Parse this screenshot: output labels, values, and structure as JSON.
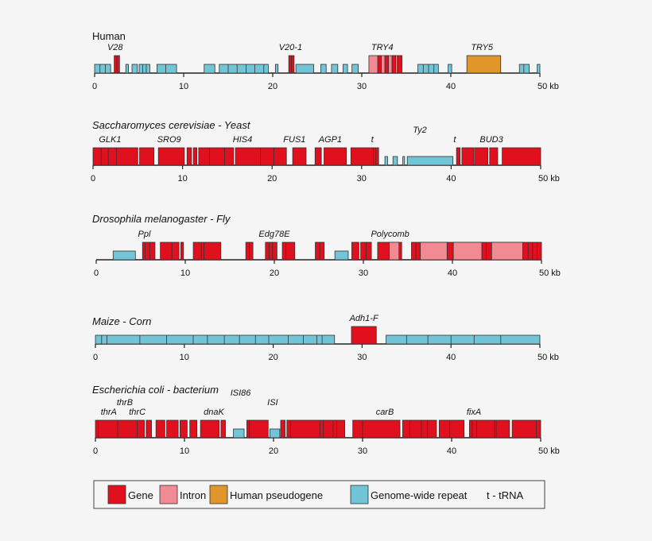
{
  "colors": {
    "gene": "#e0101e",
    "intron": "#f28a94",
    "pseudogene": "#e0962a",
    "repeat": "#72c5d6",
    "axis": "#222222",
    "box_stroke": "#333333"
  },
  "legend": [
    {
      "key": "gene",
      "label": "Gene",
      "type": "gene"
    },
    {
      "key": "intron",
      "label": "Intron",
      "type": "intron"
    },
    {
      "key": "pseudogene",
      "label": "Human pseudogene",
      "type": "pseudogene"
    },
    {
      "key": "repeat",
      "label": "Genome-wide repeat",
      "type": "repeat"
    },
    {
      "key": "trna",
      "label": "t - tRNA",
      "type": "text"
    }
  ],
  "genomes": [
    {
      "id": "human",
      "title": "Human",
      "italic": false,
      "ticks": [
        "0",
        "10",
        "20",
        "30",
        "40",
        "50 kb"
      ],
      "labels": [
        {
          "text": "V28",
          "kb": 2.3,
          "row": 0
        },
        {
          "text": "V20-1",
          "kb": 22.0,
          "row": 0
        },
        {
          "text": "TRY4",
          "kb": 32.3,
          "row": 0
        },
        {
          "text": "TRY5",
          "kb": 43.5,
          "row": 0
        }
      ],
      "features": [
        {
          "type": "repeat",
          "start": 0.0,
          "end": 1.8,
          "h": "s",
          "div": [
            0.6,
            1.2
          ]
        },
        {
          "type": "gene",
          "start": 2.2,
          "end": 2.8,
          "h": "t",
          "div": [
            2.5
          ]
        },
        {
          "type": "repeat",
          "start": 3.5,
          "end": 3.8,
          "h": "s"
        },
        {
          "type": "repeat",
          "start": 4.2,
          "end": 4.8,
          "h": "s"
        },
        {
          "type": "repeat",
          "start": 5.0,
          "end": 6.2,
          "h": "s",
          "div": [
            5.4,
            5.8
          ]
        },
        {
          "type": "repeat",
          "start": 7.0,
          "end": 9.2,
          "h": "s",
          "div": [
            8.0
          ]
        },
        {
          "type": "repeat",
          "start": 12.3,
          "end": 13.5,
          "h": "s"
        },
        {
          "type": "repeat",
          "start": 14.0,
          "end": 19.5,
          "h": "s",
          "div": [
            15.0,
            16.0,
            17.0,
            18.0,
            19.0
          ]
        },
        {
          "type": "repeat",
          "start": 20.3,
          "end": 20.6,
          "h": "s"
        },
        {
          "type": "gene",
          "start": 21.8,
          "end": 22.4,
          "h": "t",
          "div": [
            22.1
          ]
        },
        {
          "type": "repeat",
          "start": 22.6,
          "end": 24.6,
          "h": "s"
        },
        {
          "type": "repeat",
          "start": 25.4,
          "end": 26.0,
          "h": "s"
        },
        {
          "type": "repeat",
          "start": 26.6,
          "end": 27.3,
          "h": "s"
        },
        {
          "type": "repeat",
          "start": 27.9,
          "end": 28.4,
          "h": "s"
        },
        {
          "type": "repeat",
          "start": 28.9,
          "end": 29.6,
          "h": "s"
        },
        {
          "type": "intron",
          "start": 30.8,
          "end": 34.5,
          "h": "t",
          "div": [
            31.8,
            32.6,
            33.4,
            34.0
          ]
        },
        {
          "type": "gene",
          "start": 31.8,
          "end": 32.2,
          "h": "t"
        },
        {
          "type": "gene",
          "start": 32.6,
          "end": 33.0,
          "h": "t"
        },
        {
          "type": "gene",
          "start": 33.4,
          "end": 33.8,
          "h": "t"
        },
        {
          "type": "gene",
          "start": 34.0,
          "end": 34.5,
          "h": "t"
        },
        {
          "type": "repeat",
          "start": 36.3,
          "end": 38.6,
          "h": "s",
          "div": [
            36.9,
            37.5,
            38.1
          ]
        },
        {
          "type": "repeat",
          "start": 39.7,
          "end": 40.1,
          "h": "s"
        },
        {
          "type": "pseudogene",
          "start": 41.8,
          "end": 45.6,
          "h": "t"
        },
        {
          "type": "repeat",
          "start": 47.7,
          "end": 48.8,
          "h": "s",
          "div": [
            48.2
          ]
        },
        {
          "type": "repeat",
          "start": 49.7,
          "end": 50.0,
          "h": "s"
        }
      ]
    },
    {
      "id": "yeast",
      "title": "Saccharomyces cerevisiae - Yeast",
      "italic": true,
      "ticks": [
        "0",
        "10",
        "20",
        "30",
        "40",
        "50 kb"
      ],
      "labels": [
        {
          "text": "GLK1",
          "kb": 1.9,
          "row": 0
        },
        {
          "text": "SRO9",
          "kb": 8.5,
          "row": 0
        },
        {
          "text": "HIS4",
          "kb": 16.7,
          "row": 0
        },
        {
          "text": "FUS1",
          "kb": 22.5,
          "row": 0
        },
        {
          "text": "AGP1",
          "kb": 26.5,
          "row": 0
        },
        {
          "text": "t",
          "kb": 31.2,
          "row": 0
        },
        {
          "text": "Ty2",
          "kb": 36.5,
          "row": -1
        },
        {
          "text": "t",
          "kb": 40.4,
          "row": 0
        },
        {
          "text": "BUD3",
          "kb": 44.5,
          "row": 0
        }
      ],
      "features": [
        {
          "type": "gene",
          "start": 0.0,
          "end": 5.0,
          "h": "t",
          "div": [
            0.9,
            1.7,
            2.6
          ]
        },
        {
          "type": "gene",
          "start": 5.2,
          "end": 6.8,
          "h": "t"
        },
        {
          "type": "gene",
          "start": 7.3,
          "end": 10.2,
          "h": "t"
        },
        {
          "type": "gene",
          "start": 10.5,
          "end": 11.0,
          "h": "t"
        },
        {
          "type": "gene",
          "start": 11.2,
          "end": 11.6,
          "h": "t"
        },
        {
          "type": "gene",
          "start": 11.8,
          "end": 15.7,
          "h": "t",
          "div": [
            13.0,
            14.7
          ]
        },
        {
          "type": "gene",
          "start": 15.9,
          "end": 21.6,
          "h": "t",
          "div": [
            18.7,
            20.2
          ]
        },
        {
          "type": "gene",
          "start": 22.3,
          "end": 23.8,
          "h": "t"
        },
        {
          "type": "gene",
          "start": 24.8,
          "end": 25.5,
          "h": "t"
        },
        {
          "type": "gene",
          "start": 25.8,
          "end": 28.3,
          "h": "t"
        },
        {
          "type": "gene",
          "start": 28.8,
          "end": 31.9,
          "h": "t",
          "div": [
            31.3,
            31.6
          ]
        },
        {
          "type": "repeat",
          "start": 32.6,
          "end": 32.9,
          "h": "s"
        },
        {
          "type": "repeat",
          "start": 33.5,
          "end": 34.0,
          "h": "s"
        },
        {
          "type": "repeat",
          "start": 34.6,
          "end": 34.8,
          "h": "s"
        },
        {
          "type": "repeat",
          "start": 35.1,
          "end": 40.2,
          "h": "s"
        },
        {
          "type": "gene",
          "start": 40.6,
          "end": 41.0,
          "h": "t"
        },
        {
          "type": "gene",
          "start": 41.2,
          "end": 42.5,
          "h": "t"
        },
        {
          "type": "gene",
          "start": 42.6,
          "end": 44.1,
          "h": "t"
        },
        {
          "type": "gene",
          "start": 44.3,
          "end": 45.2,
          "h": "t"
        },
        {
          "type": "gene",
          "start": 45.7,
          "end": 50.0,
          "h": "t"
        }
      ]
    },
    {
      "id": "fly",
      "title": "Drosophila melanogaster - Fly",
      "italic": true,
      "ticks": [
        "0",
        "10",
        "20",
        "30",
        "40",
        "50 kb"
      ],
      "labels": [
        {
          "text": "Ppl",
          "kb": 5.4,
          "row": 0
        },
        {
          "text": "Edg78E",
          "kb": 20.0,
          "row": 0
        },
        {
          "text": "Polycomb",
          "kb": 33.0,
          "row": 0
        }
      ],
      "features": [
        {
          "type": "repeat",
          "start": 1.9,
          "end": 4.4,
          "h": "s"
        },
        {
          "type": "gene",
          "start": 5.2,
          "end": 6.6,
          "h": "t",
          "div": [
            5.5,
            6.0
          ]
        },
        {
          "type": "gene",
          "start": 7.2,
          "end": 9.3,
          "h": "t",
          "div": [
            8.5
          ]
        },
        {
          "type": "gene",
          "start": 9.5,
          "end": 9.8,
          "h": "t"
        },
        {
          "type": "gene",
          "start": 10.9,
          "end": 14.0,
          "h": "t",
          "div": [
            11.8,
            12.1
          ]
        },
        {
          "type": "gene",
          "start": 16.8,
          "end": 17.6,
          "h": "t",
          "div": [
            17.2
          ]
        },
        {
          "type": "gene",
          "start": 19.0,
          "end": 20.3,
          "h": "t",
          "div": [
            19.4,
            19.8
          ]
        },
        {
          "type": "gene",
          "start": 20.9,
          "end": 22.3,
          "h": "t",
          "div": [
            21.3
          ]
        },
        {
          "type": "gene",
          "start": 24.6,
          "end": 25.6,
          "h": "t",
          "div": [
            25.1
          ]
        },
        {
          "type": "repeat",
          "start": 26.8,
          "end": 28.3,
          "h": "s"
        },
        {
          "type": "gene",
          "start": 28.7,
          "end": 29.5,
          "h": "t"
        },
        {
          "type": "gene",
          "start": 29.7,
          "end": 30.9,
          "h": "t",
          "div": [
            30.3
          ]
        },
        {
          "type": "gene",
          "start": 31.6,
          "end": 34.3,
          "h": "t",
          "div": [
            32.9
          ]
        },
        {
          "type": "intron",
          "start": 32.9,
          "end": 34.0,
          "h": "t"
        },
        {
          "type": "gene",
          "start": 35.4,
          "end": 50.0,
          "h": "t",
          "div": [
            35.9,
            36.4,
            39.4,
            40.1,
            43.3,
            43.8,
            44.4,
            47.9,
            48.5,
            49.0,
            49.5
          ]
        },
        {
          "type": "intron",
          "start": 36.4,
          "end": 39.4,
          "h": "t"
        },
        {
          "type": "intron",
          "start": 40.1,
          "end": 43.3,
          "h": "t"
        },
        {
          "type": "intron",
          "start": 44.4,
          "end": 47.9,
          "h": "t"
        }
      ]
    },
    {
      "id": "maize",
      "title": "Maize - Corn",
      "italic": true,
      "ticks": [
        "0",
        "10",
        "20",
        "30",
        "40",
        "50 kb"
      ],
      "labels": [
        {
          "text": "Adh1-F",
          "kb": 30.2,
          "row": 0
        }
      ],
      "features": [
        {
          "type": "repeat",
          "start": 0.0,
          "end": 26.9,
          "h": "s",
          "div": [
            0.7,
            1.3,
            5.0,
            8.0,
            11.0,
            12.6,
            14.5,
            16.2,
            18.0,
            19.5,
            21.7,
            23.4,
            24.9,
            25.5
          ]
        },
        {
          "type": "gene",
          "start": 28.8,
          "end": 31.6,
          "h": "t"
        },
        {
          "type": "repeat",
          "start": 32.7,
          "end": 50.0,
          "h": "s",
          "div": [
            35.0,
            37.4,
            40.0,
            42.6,
            45.6
          ]
        }
      ]
    },
    {
      "id": "ecoli",
      "title": "Escherichia coli - bacterium",
      "italic": true,
      "ticks": [
        "0",
        "10",
        "20",
        "30",
        "40",
        "50 kb"
      ],
      "labels": [
        {
          "text": "thrB",
          "kb": 3.3,
          "row": -1
        },
        {
          "text": "thrA",
          "kb": 1.5,
          "row": 0
        },
        {
          "text": "thrC",
          "kb": 4.7,
          "row": 0
        },
        {
          "text": "ISI86",
          "kb": 16.3,
          "row": -2
        },
        {
          "text": "dnaK",
          "kb": 13.3,
          "row": 0
        },
        {
          "text": "ISI",
          "kb": 19.9,
          "row": -1
        },
        {
          "text": "carB",
          "kb": 32.5,
          "row": 0
        },
        {
          "text": "fixA",
          "kb": 42.5,
          "row": 0
        }
      ],
      "features": [
        {
          "type": "gene",
          "start": 0.0,
          "end": 5.5,
          "h": "t",
          "div": [
            0.3,
            2.5,
            4.7
          ]
        },
        {
          "type": "gene",
          "start": 5.7,
          "end": 6.3,
          "h": "t"
        },
        {
          "type": "gene",
          "start": 6.8,
          "end": 7.8,
          "h": "t"
        },
        {
          "type": "gene",
          "start": 8.0,
          "end": 9.3,
          "h": "t"
        },
        {
          "type": "gene",
          "start": 9.5,
          "end": 10.3,
          "h": "t"
        },
        {
          "type": "gene",
          "start": 10.6,
          "end": 11.4,
          "h": "t"
        },
        {
          "type": "gene",
          "start": 11.8,
          "end": 13.9,
          "h": "t"
        },
        {
          "type": "gene",
          "start": 14.1,
          "end": 14.6,
          "h": "t"
        },
        {
          "type": "repeat",
          "start": 15.5,
          "end": 16.7,
          "h": "s"
        },
        {
          "type": "gene",
          "start": 17.0,
          "end": 19.4,
          "h": "t",
          "div": [
            17.3
          ]
        },
        {
          "type": "repeat",
          "start": 19.6,
          "end": 20.7,
          "h": "s"
        },
        {
          "type": "gene",
          "start": 20.8,
          "end": 21.3,
          "h": "t"
        },
        {
          "type": "gene",
          "start": 21.5,
          "end": 28.0,
          "h": "t",
          "div": [
            21.9,
            25.2,
            25.6,
            26.7,
            27.1
          ]
        },
        {
          "type": "gene",
          "start": 28.9,
          "end": 34.2,
          "h": "t",
          "div": [
            30.0
          ]
        },
        {
          "type": "gene",
          "start": 34.5,
          "end": 38.3,
          "h": "t",
          "div": [
            35.3,
            36.6,
            37.3
          ]
        },
        {
          "type": "gene",
          "start": 38.6,
          "end": 41.4,
          "h": "t",
          "div": [
            39.8
          ]
        },
        {
          "type": "gene",
          "start": 42.0,
          "end": 46.5,
          "h": "t",
          "div": [
            42.3,
            42.8,
            44.8,
            45.0
          ]
        },
        {
          "type": "gene",
          "start": 46.8,
          "end": 50.0,
          "h": "t",
          "div": [
            49.5
          ]
        }
      ]
    }
  ]
}
